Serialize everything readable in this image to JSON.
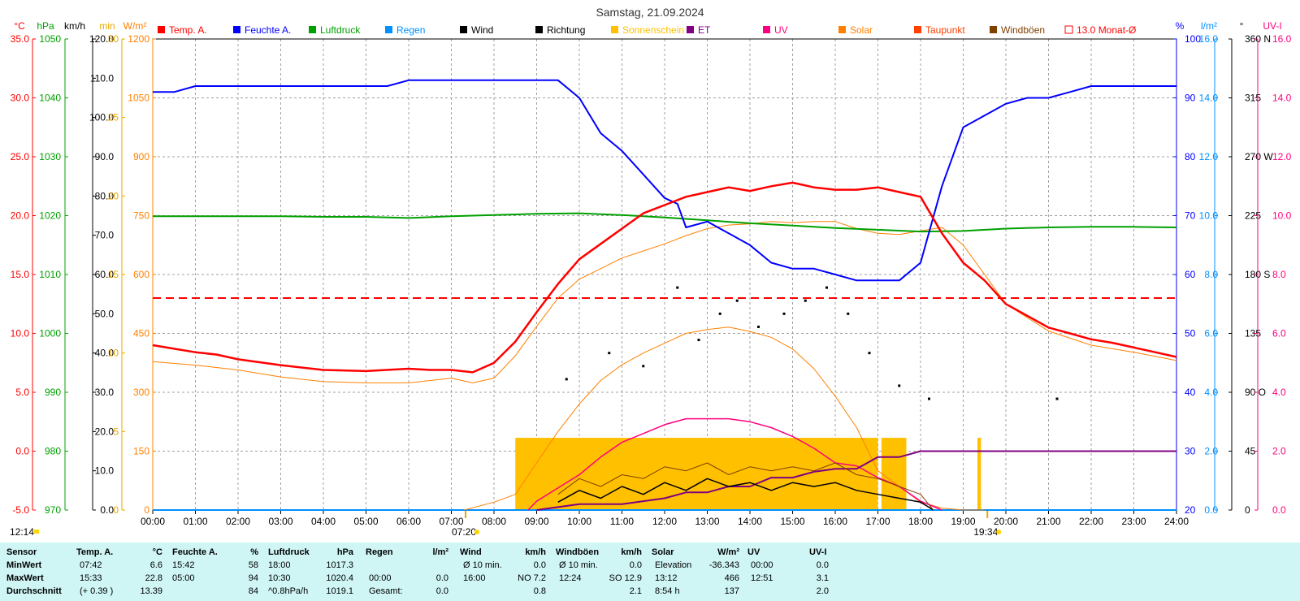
{
  "chart_data": {
    "type": "line",
    "title": "Samstag, 21.09.2024",
    "x_axis": {
      "ticks": [
        "00:00",
        "01:00",
        "02:00",
        "03:00",
        "04:00",
        "05:00",
        "06:00",
        "07:00",
        "08:00",
        "09:00",
        "10:00",
        "11:00",
        "12:00",
        "13:00",
        "14:00",
        "15:00",
        "16:00",
        "17:00",
        "18:00",
        "19:00",
        "20:00",
        "21:00",
        "22:00",
        "23:00",
        "24:00"
      ],
      "range_hours": [
        0,
        24
      ],
      "sunrise": "07:20",
      "sunset": "19:34",
      "left_marker": "12:14"
    },
    "y_axes": [
      {
        "unit": "°C",
        "color": "#ff0000",
        "ticks": [
          "-5.0",
          "0.0",
          "5.0",
          "10.0",
          "15.0",
          "20.0",
          "25.0",
          "30.0",
          "35.0"
        ],
        "range": [
          -5,
          35
        ]
      },
      {
        "unit": "hPa",
        "color": "#00a000",
        "ticks": [
          "970",
          "980",
          "990",
          "1000",
          "1010",
          "1020",
          "1030",
          "1040",
          "1050"
        ],
        "range": [
          970,
          1050
        ]
      },
      {
        "unit": "km/h",
        "color": "#000000",
        "ticks": [
          "0.0",
          "10.0",
          "20.0",
          "30.0",
          "40.0",
          "50.0",
          "60.0",
          "70.0",
          "80.0",
          "90.0",
          "100.0",
          "110.0",
          "120.0"
        ],
        "range": [
          0,
          120
        ]
      },
      {
        "unit": "min",
        "color": "#e6a800",
        "ticks": [
          "0",
          "5",
          "10",
          "15",
          "20",
          "25",
          "30"
        ],
        "range": [
          0,
          30
        ]
      },
      {
        "unit": "W/m²",
        "color": "#ff8000",
        "ticks": [
          "0",
          "150",
          "300",
          "450",
          "600",
          "750",
          "900",
          "1050",
          "1200"
        ],
        "range": [
          0,
          1200
        ]
      },
      {
        "unit": "%",
        "color": "#0000ff",
        "ticks": [
          "20",
          "30",
          "40",
          "50",
          "60",
          "70",
          "80",
          "90",
          "100"
        ],
        "range": [
          20,
          100
        ]
      },
      {
        "unit": "l/m²",
        "color": "#0090ff",
        "ticks": [
          "0.0",
          "2.0",
          "4.0",
          "6.0",
          "8.0",
          "10.0",
          "12.0",
          "14.0",
          "16.0"
        ],
        "range": [
          0,
          16
        ]
      },
      {
        "unit": "°",
        "color": "#000000",
        "ticks": [
          "0",
          "45",
          "90 O",
          "135",
          "180 S",
          "225",
          "270 W",
          "315",
          "360 N"
        ],
        "range": [
          0,
          360
        ]
      },
      {
        "unit": "UV-I",
        "color": "#ff0080",
        "ticks": [
          "0.0",
          "2.0",
          "4.0",
          "6.0",
          "8.0",
          "10.0",
          "12.0",
          "14.0",
          "16.0"
        ],
        "range": [
          0,
          16
        ]
      }
    ],
    "legend": [
      {
        "label": "Temp. A.",
        "color": "#ff0000",
        "text_color": "#ff0000"
      },
      {
        "label": "Feuchte A.",
        "color": "#0000ff",
        "text_color": "#0000ff"
      },
      {
        "label": "Luftdruck",
        "color": "#00a000",
        "text_color": "#00a000"
      },
      {
        "label": "Regen",
        "color": "#0090ff",
        "text_color": "#0090ff"
      },
      {
        "label": "Wind",
        "color": "#000000",
        "text_color": "#000000"
      },
      {
        "label": "Richtung",
        "color": "#000000",
        "text_color": "#000000"
      },
      {
        "label": "Sonnenschein",
        "color": "#ffc000",
        "text_color": "#ffc000"
      },
      {
        "label": "ET",
        "color": "#800080",
        "text_color": "#800080"
      },
      {
        "label": "UV",
        "color": "#ff0080",
        "text_color": "#ff0080"
      },
      {
        "label": "Solar",
        "color": "#ff8000",
        "text_color": "#ff8000"
      },
      {
        "label": "Taupunkt",
        "color": "#ff4000",
        "text_color": "#ff4000"
      },
      {
        "label": "Windböen",
        "color": "#804000",
        "text_color": "#804000"
      },
      {
        "label": "13.0 Monat-Ø",
        "color": "#ff0000",
        "text_color": "#ff0000",
        "style": "outline"
      }
    ],
    "monthly_avg_temp": 13.0,
    "series": [
      {
        "name": "Temp. A.",
        "axis": "°C",
        "color": "#ff0000",
        "x": [
          0,
          0.5,
          1,
          1.5,
          2,
          3,
          4,
          5,
          6,
          6.5,
          7,
          7.5,
          8,
          8.5,
          9,
          9.5,
          10,
          10.5,
          11,
          11.5,
          12,
          12.5,
          13,
          13.5,
          14,
          14.5,
          15,
          15.5,
          16,
          16.5,
          17,
          17.5,
          18,
          18.5,
          19,
          19.5,
          20,
          20.5,
          21,
          21.5,
          22,
          22.5,
          23,
          23.5,
          24
        ],
        "values": [
          9.0,
          8.7,
          8.4,
          8.2,
          7.8,
          7.3,
          6.9,
          6.8,
          7.0,
          6.9,
          6.9,
          6.7,
          7.5,
          9.3,
          11.8,
          14.2,
          16.3,
          17.6,
          18.9,
          20.2,
          20.9,
          21.6,
          22.0,
          22.4,
          22.1,
          22.5,
          22.8,
          22.4,
          22.2,
          22.2,
          22.4,
          22.0,
          21.6,
          18.5,
          16.0,
          14.5,
          12.5,
          11.5,
          10.5,
          10.0,
          9.5,
          9.2,
          8.8,
          8.4,
          8.0
        ]
      },
      {
        "name": "Taupunkt",
        "axis": "°C",
        "color": "#ff8000",
        "x": [
          0,
          1,
          2,
          3,
          4,
          5,
          6,
          7,
          7.5,
          8,
          8.5,
          9,
          9.5,
          10,
          10.5,
          11,
          11.5,
          12,
          12.5,
          13,
          13.5,
          14,
          14.5,
          15,
          15.5,
          16,
          16.5,
          17,
          17.5,
          18,
          18.5,
          19,
          19.5,
          20,
          21,
          22,
          23,
          24
        ],
        "values": [
          7.6,
          7.3,
          6.9,
          6.3,
          5.9,
          5.8,
          5.8,
          6.2,
          5.8,
          6.2,
          8.1,
          10.6,
          13.0,
          14.6,
          15.5,
          16.4,
          17.0,
          17.6,
          18.3,
          18.9,
          19.2,
          19.3,
          19.5,
          19.4,
          19.5,
          19.5,
          18.9,
          18.5,
          18.4,
          18.7,
          19.0,
          17.5,
          15.0,
          12.5,
          10.2,
          9.0,
          8.4,
          7.7
        ]
      },
      {
        "name": "Feuchte A.",
        "axis": "%",
        "color": "#0000ff",
        "x": [
          0,
          0.5,
          1,
          2,
          3,
          4,
          5,
          5.5,
          6,
          6.5,
          7,
          8,
          9,
          9.5,
          10,
          10.5,
          11,
          11.5,
          12,
          12.3,
          12.5,
          13,
          13.5,
          14,
          14.5,
          15,
          15.5,
          16,
          16.5,
          17,
          17.5,
          18,
          18.5,
          19,
          19.5,
          20,
          20.5,
          21,
          21.5,
          22,
          22.5,
          23,
          23.5,
          24
        ],
        "values": [
          91,
          91,
          92,
          92,
          92,
          92,
          92,
          92,
          93,
          93,
          93,
          93,
          93,
          93,
          90,
          84,
          81,
          77,
          73,
          72,
          68,
          69,
          67,
          65,
          62,
          61,
          61,
          60,
          59,
          59,
          59,
          62,
          75,
          85,
          87,
          89,
          90,
          90,
          91,
          92,
          92,
          92,
          92,
          92
        ]
      },
      {
        "name": "Luftdruck",
        "axis": "hPa",
        "color": "#00a000",
        "x": [
          0,
          1,
          2,
          3,
          4,
          5,
          6,
          7,
          8,
          9,
          10,
          11,
          12,
          13,
          14,
          15,
          16,
          17,
          18,
          19,
          20,
          21,
          22,
          23,
          24
        ],
        "values": [
          1019.9,
          1019.9,
          1019.9,
          1019.9,
          1019.8,
          1019.8,
          1019.6,
          1019.9,
          1020.1,
          1020.3,
          1020.4,
          1020.1,
          1019.7,
          1019.2,
          1018.7,
          1018.3,
          1017.9,
          1017.6,
          1017.3,
          1017.4,
          1017.8,
          1018.0,
          1018.1,
          1018.1,
          1018.0
        ]
      },
      {
        "name": "Solar",
        "axis": "W/m²",
        "color": "#ff8000",
        "x": [
          7.3,
          8,
          8.5,
          9,
          9.5,
          10,
          10.5,
          11,
          11.5,
          12,
          12.5,
          13,
          13.5,
          14,
          14.5,
          15,
          15.5,
          16,
          16.5,
          17,
          17.5,
          18,
          18.5,
          19,
          19.5
        ],
        "values": [
          0,
          20,
          40,
          120,
          200,
          270,
          330,
          370,
          400,
          425,
          450,
          460,
          466,
          455,
          440,
          410,
          360,
          290,
          210,
          100,
          60,
          20,
          5,
          0,
          0
        ]
      },
      {
        "name": "UV",
        "axis": "UV-I",
        "color": "#ff0080",
        "x": [
          8.8,
          9,
          10,
          10.5,
          11,
          11.5,
          12,
          12.5,
          13,
          13.5,
          14,
          14.5,
          15,
          15.5,
          16,
          16.5,
          17,
          17.5,
          18,
          18.5
        ],
        "values": [
          0,
          0.3,
          1.2,
          1.8,
          2.3,
          2.6,
          2.9,
          3.1,
          3.1,
          3.1,
          3.0,
          2.8,
          2.5,
          2.1,
          1.6,
          1.5,
          1.1,
          0.8,
          0.3,
          0
        ]
      },
      {
        "name": "ET",
        "axis": "l/m²",
        "color": "#800080",
        "x": [
          9,
          10,
          11,
          12,
          12.5,
          13,
          13.5,
          14,
          14.5,
          15,
          15.5,
          16,
          16.5,
          17,
          17.5,
          18,
          19,
          20,
          21,
          22,
          23,
          24
        ],
        "values": [
          0,
          0.2,
          0.2,
          0.4,
          0.6,
          0.6,
          0.8,
          0.8,
          1.1,
          1.1,
          1.3,
          1.4,
          1.4,
          1.8,
          1.8,
          2.0,
          2.0,
          2.0,
          2.0,
          2.0,
          2.0,
          2.0
        ]
      },
      {
        "name": "Regen",
        "axis": "l/m²",
        "color": "#0090ff",
        "x": [
          0,
          24
        ],
        "values": [
          0,
          0
        ]
      },
      {
        "name": "Wind",
        "axis": "km/h",
        "color": "#000000",
        "x": [
          9.5,
          10,
          10.5,
          11,
          11.5,
          12,
          12.5,
          13,
          13.5,
          14,
          14.5,
          15,
          15.5,
          16,
          16.5,
          17,
          17.5,
          18,
          18.3
        ],
        "values": [
          2,
          5,
          3,
          6,
          4,
          7,
          5,
          8,
          6,
          7,
          5,
          7,
          6,
          7,
          5,
          4,
          3,
          2,
          0
        ]
      },
      {
        "name": "Windböen",
        "axis": "km/h",
        "color": "#804000",
        "x": [
          9.5,
          10,
          10.5,
          11,
          11.5,
          12,
          12.5,
          13,
          13.5,
          14,
          14.5,
          15,
          15.5,
          16,
          16.5,
          17,
          17.5,
          18,
          18.3
        ],
        "values": [
          4,
          8,
          6,
          9,
          8,
          11,
          10,
          12,
          9,
          11,
          10,
          11,
          10,
          12,
          9,
          8,
          6,
          4,
          0
        ]
      }
    ],
    "sunshine_blocks": [
      {
        "from": "08:30",
        "to": "17:00",
        "minutes": 4.6
      },
      {
        "from": "17:05",
        "to": "17:40",
        "minutes": 4.6
      },
      {
        "from": "19:20",
        "to": "19:25",
        "minutes": 4.6
      }
    ],
    "wind_direction_deg": [
      {
        "x": 9.7,
        "v": 100
      },
      {
        "x": 10.7,
        "v": 120
      },
      {
        "x": 11.5,
        "v": 110
      },
      {
        "x": 12.3,
        "v": 170
      },
      {
        "x": 12.8,
        "v": 130
      },
      {
        "x": 13.3,
        "v": 150
      },
      {
        "x": 13.7,
        "v": 160
      },
      {
        "x": 14.2,
        "v": 140
      },
      {
        "x": 14.8,
        "v": 150
      },
      {
        "x": 15.3,
        "v": 160
      },
      {
        "x": 15.8,
        "v": 170
      },
      {
        "x": 16.3,
        "v": 150
      },
      {
        "x": 16.8,
        "v": 120
      },
      {
        "x": 17.5,
        "v": 95
      },
      {
        "x": 18.2,
        "v": 85
      },
      {
        "x": 21.2,
        "v": 85
      }
    ]
  },
  "table": {
    "headers": {
      "sensor": "Sensor",
      "temp": "Temp. A.",
      "temp_unit": "°C",
      "hum": "Feuchte A.",
      "hum_unit": "%",
      "press": "Luftdruck",
      "press_unit": "hPa",
      "rain": "Regen",
      "rain_unit": "l/m²",
      "wind": "Wind",
      "wind_unit": "km/h",
      "gust": "Windböen",
      "gust_unit": "km/h",
      "solar": "Solar",
      "solar_unit": "W/m²",
      "uv": "UV",
      "uvi": "UV-I"
    },
    "rows": [
      {
        "label": "MinWert",
        "temp_t": "07:42",
        "temp_v": "6.6",
        "hum_t": "15:42",
        "hum_v": "58",
        "press_t": "18:00",
        "press_v": "1017.3",
        "rain_t": "",
        "rain_v": "",
        "wind_t": "Ø 10 min.",
        "wind_v": "0.0",
        "gust_t": "Ø 10 min.",
        "gust_v": "0.0",
        "solar_t": "Elevation",
        "solar_v": "-36.343",
        "uv_t": "00:00",
        "uv_v": "0.0"
      },
      {
        "label": "MaxWert",
        "temp_t": "15:33",
        "temp_v": "22.8",
        "hum_t": "05:00",
        "hum_v": "94",
        "press_t": "10:30",
        "press_v": "1020.4",
        "rain_t": "00:00",
        "rain_v": "0.0",
        "wind_t": "16:00",
        "wind_v": "NO 7.2",
        "gust_t": "12:24",
        "gust_v": "SO 12.9",
        "solar_t": "13:12",
        "solar_v": "466",
        "uv_t": "12:51",
        "uv_v": "3.1"
      },
      {
        "label": "Durchschnitt",
        "temp_t": "(+ 0.39 )",
        "temp_v": "13.39",
        "hum_t": "",
        "hum_v": "84",
        "press_t": "^0.8hPa/h",
        "press_v": "1019.1",
        "rain_t": "Gesamt:",
        "rain_v": "0.0",
        "wind_t": "",
        "wind_v": "0.8",
        "gust_t": "",
        "gust_v": "2.1",
        "solar_t": "8:54 h",
        "solar_v": "137",
        "uv_t": "",
        "uv_v": "2.0"
      }
    ]
  }
}
